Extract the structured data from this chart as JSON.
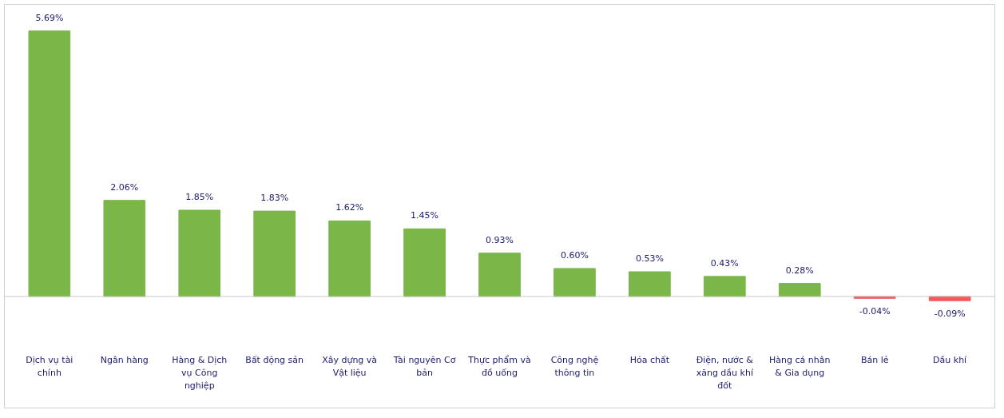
{
  "chart_data": {
    "type": "bar",
    "categories": [
      "Dịch vụ tài chính",
      "Ngân hàng",
      "Hàng & Dịch vụ Công nghiệp",
      "Bất động sản",
      "Xây dựng và Vật liệu",
      "Tài nguyên Cơ bản",
      "Thực phẩm và đồ uống",
      "Công nghệ thông tin",
      "Hóa chất",
      "Điện, nước & xăng dầu khí đốt",
      "Hàng cá nhân & Gia dụng",
      "Bán lẻ",
      "Dầu khí"
    ],
    "values": [
      5.69,
      2.06,
      1.85,
      1.83,
      1.62,
      1.45,
      0.93,
      0.6,
      0.53,
      0.43,
      0.28,
      -0.04,
      -0.09
    ],
    "value_labels": [
      "5.69%",
      "2.06%",
      "1.85%",
      "1.83%",
      "1.62%",
      "1.45%",
      "0.93%",
      "0.60%",
      "0.53%",
      "0.43%",
      "0.28%",
      "-0.04%",
      "-0.09%"
    ],
    "colors": [
      "#7ab648",
      "#7ab648",
      "#7ab648",
      "#7ab648",
      "#7ab648",
      "#7ab648",
      "#7ab648",
      "#7ab648",
      "#7ab648",
      "#7ab648",
      "#7ab648",
      "#f05a5a",
      "#f05a5a"
    ],
    "grid": false
  }
}
